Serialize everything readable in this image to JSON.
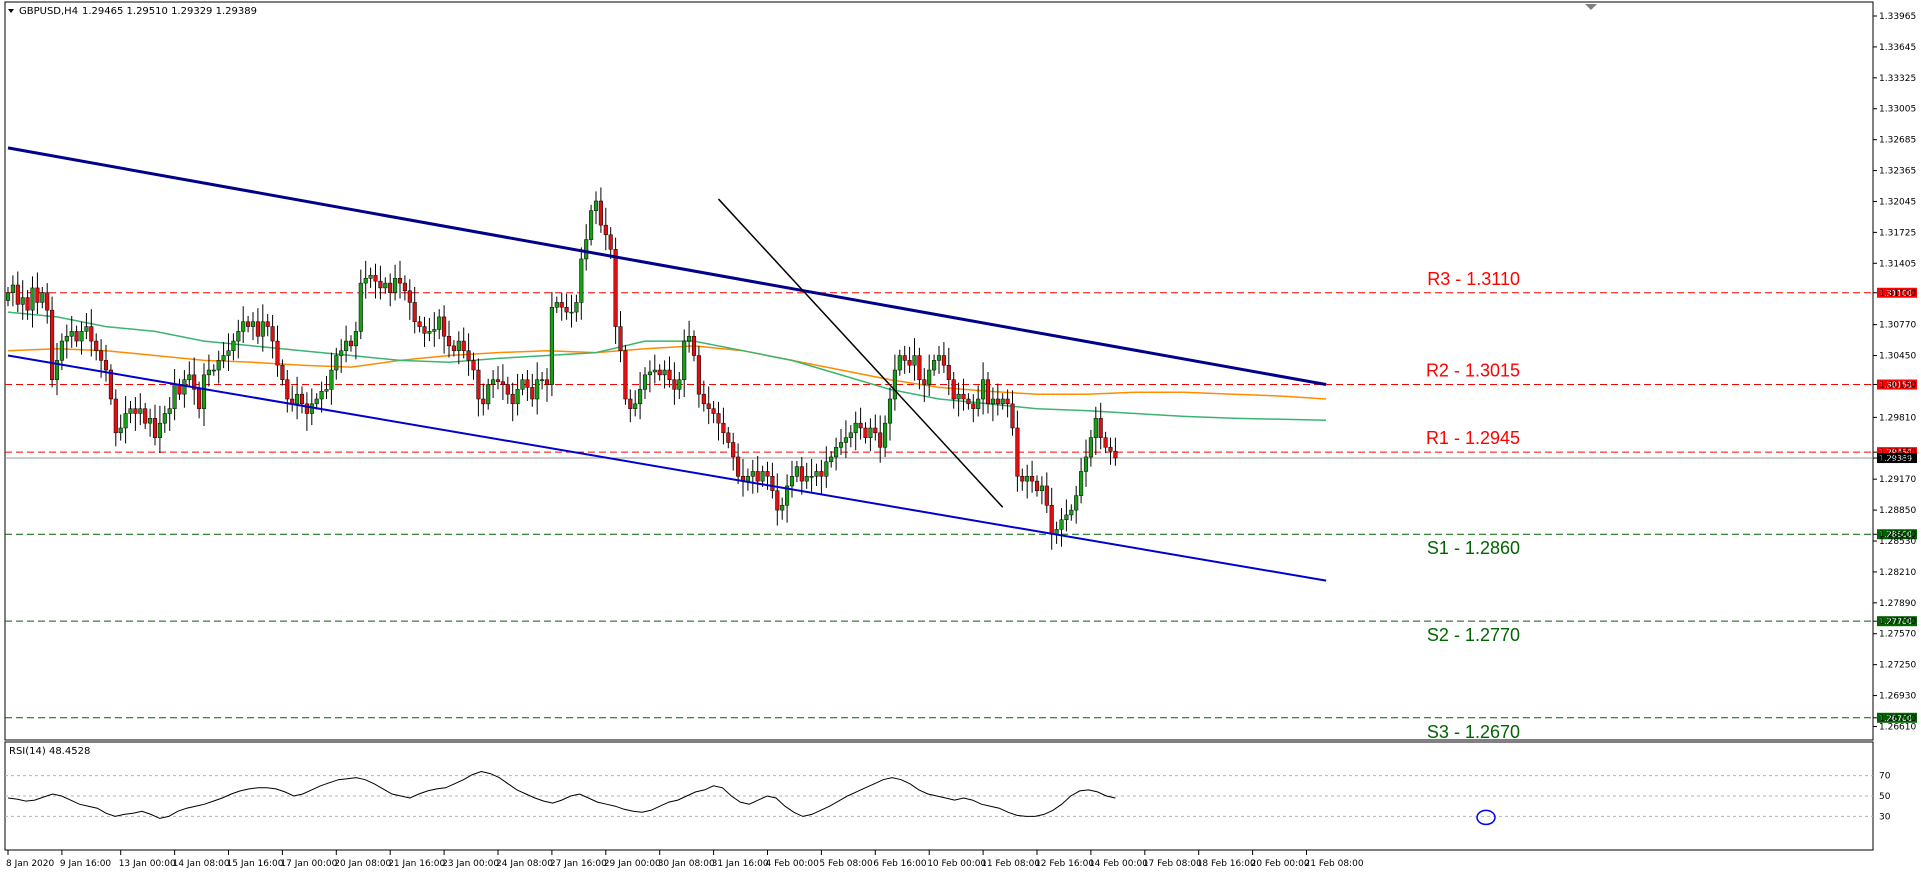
{
  "header": {
    "title": "GBPUSD,H4",
    "ohlc": "1.29465 1.29510 1.29329 1.29389"
  },
  "chart_data": {
    "type": "candlestick",
    "symbol": "GBPUSD",
    "timeframe": "H4",
    "ylim": [
      1.2647,
      1.3411
    ],
    "y_ticks": [
      "1.33965",
      "1.33645",
      "1.33325",
      "1.33005",
      "1.32685",
      "1.32365",
      "1.32045",
      "1.31725",
      "1.31405",
      "1.31100",
      "1.30770",
      "1.30450",
      "1.30150",
      "1.29810",
      "1.29450",
      "1.29389",
      "1.29170",
      "1.28850",
      "1.28600",
      "1.28530",
      "1.28210",
      "1.27890",
      "1.27700",
      "1.27570",
      "1.27250",
      "1.26930",
      "1.26700",
      "1.26610"
    ],
    "x_ticks": [
      {
        "label": "8 Jan 2020",
        "i": 0
      },
      {
        "label": "9 Jan 16:00",
        "i": 11
      },
      {
        "label": "13 Jan 00:00",
        "i": 23
      },
      {
        "label": "14 Jan 08:00",
        "i": 34
      },
      {
        "label": "15 Jan 16:00",
        "i": 45
      },
      {
        "label": "17 Jan 00:00",
        "i": 56
      },
      {
        "label": "20 Jan 08:00",
        "i": 67
      },
      {
        "label": "21 Jan 16:00",
        "i": 78
      },
      {
        "label": "23 Jan 00:00",
        "i": 89
      },
      {
        "label": "24 Jan 08:00",
        "i": 100
      },
      {
        "label": "27 Jan 16:00",
        "i": 111
      },
      {
        "label": "29 Jan 00:00",
        "i": 122
      },
      {
        "label": "30 Jan 08:00",
        "i": 133
      },
      {
        "label": "31 Jan 16:00",
        "i": 144
      },
      {
        "label": "4 Feb 00:00",
        "i": 155
      },
      {
        "label": "5 Feb 08:00",
        "i": 166
      },
      {
        "label": "6 Feb 16:00",
        "i": 177
      },
      {
        "label": "10 Feb 00:00",
        "i": 188
      },
      {
        "label": "11 Feb 08:00",
        "i": 199
      },
      {
        "label": "12 Feb 16:00",
        "i": 210
      },
      {
        "label": "14 Feb 00:00",
        "i": 221
      },
      {
        "label": "17 Feb 08:00",
        "i": 232
      },
      {
        "label": "18 Feb 16:00",
        "i": 243
      },
      {
        "label": "20 Feb 00:00",
        "i": 254
      },
      {
        "label": "21 Feb 08:00",
        "i": 265
      }
    ],
    "closes": [
      1.311,
      1.3118,
      1.3098,
      1.3105,
      1.3092,
      1.3115,
      1.31,
      1.311,
      1.3092,
      1.302,
      1.304,
      1.306,
      1.3065,
      1.307,
      1.306,
      1.307,
      1.3075,
      1.306,
      1.305,
      1.304,
      1.303,
      1.3,
      1.2965,
      1.297,
      1.2985,
      1.299,
      1.2985,
      1.299,
      1.2975,
      1.298,
      1.296,
      1.2975,
      1.2985,
      1.299,
      1.3015,
      1.3005,
      1.302,
      1.3025,
      1.301,
      1.299,
      1.3025,
      1.303,
      1.303,
      1.304,
      1.3045,
      1.305,
      1.306,
      1.307,
      1.308,
      1.3075,
      1.308,
      1.3065,
      1.308,
      1.3075,
      1.306,
      1.3035,
      1.302,
      1.3,
      1.2995,
      1.3005,
      1.2995,
      1.2985,
      1.2995,
      1.3,
      1.3008,
      1.301,
      1.303,
      1.3045,
      1.305,
      1.306,
      1.3055,
      1.307,
      1.312,
      1.3125,
      1.3128,
      1.3122,
      1.3115,
      1.312,
      1.311,
      1.3125,
      1.312,
      1.3112,
      1.31,
      1.308,
      1.3075,
      1.3068,
      1.307,
      1.3072,
      1.3085,
      1.3065,
      1.3055,
      1.305,
      1.306,
      1.305,
      1.304,
      1.303,
      1.3,
      1.2995,
      1.3015,
      1.302,
      1.3018,
      1.3015,
      1.3005,
      1.2995,
      1.301,
      1.302,
      1.3012,
      1.3,
      1.302,
      1.302,
      1.3015,
      1.3095,
      1.31,
      1.3095,
      1.309,
      1.309,
      1.31,
      1.3145,
      1.3165,
      1.3195,
      1.3205,
      1.318,
      1.317,
      1.3155,
      1.3075,
      1.305,
      1.3,
      1.299,
      1.2995,
      1.301,
      1.3025,
      1.3028,
      1.303,
      1.3025,
      1.303,
      1.302,
      1.301,
      1.302,
      1.306,
      1.3065,
      1.3045,
      1.3005,
      1.2995,
      1.299,
      1.2985,
      1.2975,
      1.2965,
      1.2955,
      1.294,
      1.292,
      1.2915,
      1.292,
      1.2925,
      1.2915,
      1.2925,
      1.292,
      1.2905,
      1.2885,
      1.289,
      1.291,
      1.292,
      1.293,
      1.2915,
      1.292,
      1.292,
      1.2925,
      1.292,
      1.2935,
      1.294,
      1.295,
      1.2955,
      1.296,
      1.2965,
      1.2975,
      1.297,
      1.296,
      1.297,
      1.2965,
      1.295,
      1.2975,
      1.3,
      1.303,
      1.3045,
      1.304,
      1.3035,
      1.3045,
      1.302,
      1.3015,
      1.303,
      1.304,
      1.3045,
      1.3035,
      1.302,
      1.3,
      1.3005,
      1.3,
      1.2995,
      1.299,
      1.3,
      1.302,
      1.2995,
      1.3,
      1.2995,
      1.3,
      1.2995,
      1.297,
      1.292,
      1.2915,
      1.292,
      1.2915,
      1.2905,
      1.291,
      1.289,
      1.286,
      1.2865,
      1.2875,
      1.288,
      1.2885,
      1.29,
      1.2925,
      1.294,
      1.296,
      1.298,
      1.296,
      1.295,
      1.2946,
      1.29389
    ],
    "ma_green": [
      1.309,
      1.3085,
      1.3075,
      1.307,
      1.306,
      1.3055,
      1.305,
      1.3045,
      1.304,
      1.3038,
      1.3042,
      1.3045,
      1.3048,
      1.306,
      1.306,
      1.305,
      1.304,
      1.3025,
      1.301,
      1.3,
      1.2995,
      1.299,
      1.2988,
      1.2985,
      1.2982,
      1.298,
      1.2979,
      1.2978
    ],
    "ma_orange": [
      1.305,
      1.3052,
      1.305,
      1.3045,
      1.304,
      1.3038,
      1.3035,
      1.3033,
      1.304,
      1.3045,
      1.3048,
      1.305,
      1.3048,
      1.3052,
      1.3055,
      1.305,
      1.304,
      1.303,
      1.302,
      1.3012,
      1.3008,
      1.3005,
      1.3005,
      1.3007,
      1.3007,
      1.3005,
      1.3003,
      1.3
    ],
    "ma_index": [
      0,
      10,
      20,
      30,
      40,
      50,
      60,
      70,
      80,
      90,
      100,
      110,
      120,
      130,
      140,
      150,
      160,
      170,
      180,
      190,
      200,
      210,
      220,
      230,
      240,
      250,
      260,
      269
    ],
    "levels": [
      {
        "label": "R3 - 1.3110",
        "value": 1.311,
        "box": "1.31100",
        "color": "#ff0000"
      },
      {
        "label": "R2 - 1.3015",
        "value": 1.3015,
        "box": "1.30150",
        "color": "#ff0000"
      },
      {
        "label": "R1 - 1.2945",
        "value": 1.2945,
        "box": "1.29450",
        "color": "#ff0000"
      },
      {
        "label": "S1 - 1.2860",
        "value": 1.286,
        "box": "1.28600",
        "color": "#006400"
      },
      {
        "label": "S2 - 1.2770",
        "value": 1.277,
        "box": "1.27700",
        "color": "#006400"
      },
      {
        "label": "S3 - 1.2670",
        "value": 1.267,
        "box": "1.26700",
        "color": "#006400"
      }
    ],
    "current_price": {
      "value": 1.29389,
      "box": "1.29389"
    },
    "trendlines": [
      {
        "name": "upper-channel",
        "from": {
          "i": 0,
          "price": 1.326
        },
        "to": {
          "i": 269,
          "price": 1.3015
        },
        "color": "#00008b"
      },
      {
        "name": "lower-channel",
        "from": {
          "i": 0,
          "price": 1.3045
        },
        "to": {
          "i": 269,
          "price": 1.2812
        },
        "color": "#0000cd"
      },
      {
        "name": "short-downtrend",
        "from": {
          "i": 145,
          "price": 1.3207
        },
        "to": {
          "i": 203,
          "price": 1.2888
        },
        "color": "#000000"
      }
    ],
    "rsi": {
      "label": "RSI(14) 48.4528",
      "levels": [
        "70",
        "50",
        "30"
      ],
      "values": [
        48,
        47,
        45,
        46,
        49,
        52,
        50,
        46,
        42,
        40,
        38,
        33,
        30,
        32,
        33,
        35,
        32,
        28,
        30,
        35,
        38,
        40,
        42,
        45,
        48,
        52,
        55,
        57,
        58,
        58,
        57,
        54,
        50,
        52,
        56,
        60,
        63,
        66,
        67,
        68,
        66,
        62,
        57,
        52,
        50,
        48,
        52,
        55,
        57,
        58,
        62,
        66,
        71,
        74,
        72,
        68,
        62,
        56,
        52,
        48,
        45,
        43,
        46,
        50,
        52,
        48,
        44,
        42,
        40,
        37,
        35,
        34,
        36,
        40,
        44,
        46,
        50,
        54,
        56,
        60,
        58,
        50,
        44,
        42,
        46,
        50,
        48,
        40,
        34,
        30,
        32,
        36,
        40,
        45,
        50,
        54,
        58,
        62,
        66,
        68,
        66,
        62,
        56,
        52,
        50,
        48,
        46,
        48,
        46,
        42,
        40,
        38,
        34,
        31,
        30,
        30,
        32,
        36,
        42,
        50,
        55,
        56,
        54,
        50,
        48
      ]
    }
  }
}
